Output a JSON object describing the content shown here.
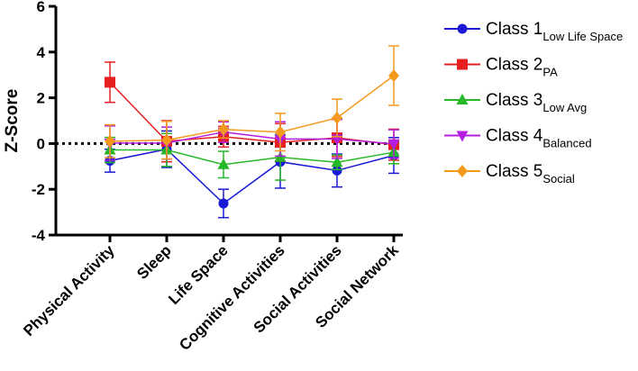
{
  "chart_data": {
    "type": "line",
    "title": "",
    "xlabel": "",
    "ylabel": "Z-Score",
    "ylim": [
      -4,
      6
    ],
    "yticks": [
      -4,
      -2,
      0,
      2,
      4,
      6
    ],
    "ytick_labels": [
      "-4",
      "-2",
      "0",
      "2",
      "4",
      "6"
    ],
    "categories": [
      "Physical Activity",
      "Sleep",
      "Life Space",
      "Cognitive Activities",
      "Social Activities",
      "Social Network"
    ],
    "reference_line": 0,
    "legend_position": "right",
    "series": [
      {
        "name": "Class 1",
        "subscript": "Low Life Space",
        "color": "#1a1ad6",
        "marker": "circle",
        "values": [
          -0.75,
          -0.25,
          -2.62,
          -0.8,
          -1.18,
          -0.52
        ],
        "errors": [
          0.5,
          0.8,
          0.62,
          1.15,
          0.72,
          0.78
        ]
      },
      {
        "name": "Class 2",
        "subscript": "PA",
        "color": "#e62020",
        "marker": "square",
        "values": [
          2.68,
          0.1,
          0.3,
          0.05,
          0.25,
          -0.05
        ],
        "errors": [
          0.88,
          0.9,
          0.45,
          0.82,
          0.82,
          0.68
        ]
      },
      {
        "name": "Class 3",
        "subscript": "Low Avg",
        "color": "#27b827",
        "marker": "triangle-up",
        "values": [
          -0.28,
          -0.28,
          -0.92,
          -0.6,
          -0.82,
          -0.38
        ],
        "errors": [
          0.55,
          0.72,
          0.58,
          1.0,
          0.32,
          0.5
        ]
      },
      {
        "name": "Class 4",
        "subscript": "Balanced",
        "color": "#b21fe0",
        "marker": "triangle-down",
        "values": [
          0.02,
          0.02,
          0.5,
          0.2,
          0.2,
          -0.02
        ],
        "errors": [
          0.75,
          0.7,
          0.45,
          0.75,
          0.85,
          0.62
        ]
      },
      {
        "name": "Class 5",
        "subscript": "Social",
        "color": "#f39a1e",
        "marker": "diamond",
        "values": [
          0.1,
          0.15,
          0.62,
          0.5,
          1.12,
          2.97
        ],
        "errors": [
          0.72,
          0.82,
          0.38,
          0.82,
          0.82,
          1.3
        ]
      }
    ]
  }
}
